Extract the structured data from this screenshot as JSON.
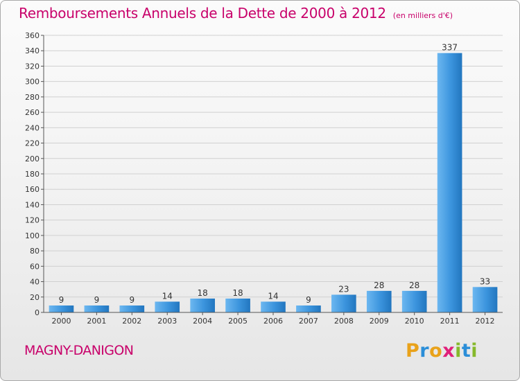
{
  "title": "Remboursements Annuels de la Dette de 2000 à 2012",
  "subtitle": "(en milliers d'€)",
  "commune": "MAGNY-DANIGON",
  "logo": {
    "letters": [
      "P",
      "r",
      "o",
      "x",
      "i",
      "t",
      "i"
    ],
    "colors": [
      "#e9a21a",
      "#2b8ed8",
      "#e9a21a",
      "#e0207a",
      "#86b92c",
      "#2b8ed8",
      "#86b92c"
    ]
  },
  "colors": {
    "title": "#c8006a",
    "bar": "#3b94dd",
    "bar_light": "#6cb7f0",
    "bar_dark": "#2276bf",
    "grid": "#d0d0d0"
  },
  "chart_data": {
    "type": "bar",
    "title": "Remboursements Annuels de la Dette de 2000 à 2012",
    "subtitle": "(en milliers d'€)",
    "categories": [
      "2000",
      "2001",
      "2002",
      "2003",
      "2004",
      "2005",
      "2006",
      "2007",
      "2008",
      "2009",
      "2010",
      "2011",
      "2012"
    ],
    "values": [
      9,
      9,
      9,
      14,
      18,
      18,
      14,
      9,
      23,
      28,
      28,
      337,
      33
    ],
    "ylim": [
      0,
      360
    ],
    "yticks": [
      0,
      20,
      40,
      60,
      80,
      100,
      120,
      140,
      160,
      180,
      200,
      220,
      240,
      260,
      280,
      300,
      320,
      340,
      360
    ],
    "grid": true,
    "legend": "none"
  }
}
